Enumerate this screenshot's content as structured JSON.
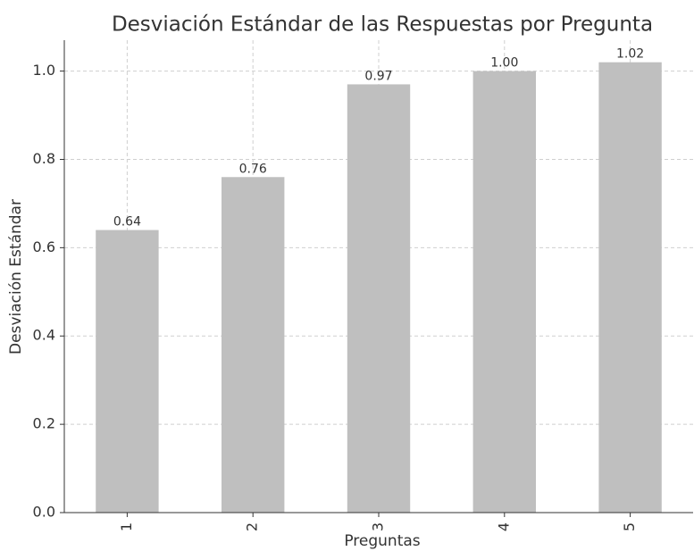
{
  "chart_data": {
    "type": "bar",
    "title": "Desviación Estándar de las Respuestas por Pregunta",
    "x_label": "Preguntas",
    "y_label": "Desviación Estándar",
    "categories": [
      "1",
      "2",
      "3",
      "4",
      "5"
    ],
    "values": [
      0.64,
      0.76,
      0.97,
      1.0,
      1.02
    ],
    "value_labels": [
      "0.64",
      "0.76",
      "0.97",
      "1.00",
      "1.02"
    ],
    "color": "#bfbfbf",
    "ylim": [
      0,
      1.07
    ],
    "yticks": [
      {
        "value": 0,
        "label": "0.0"
      },
      0.2,
      0.4,
      0.6,
      0.8,
      {
        "value": 1,
        "label": "1.0"
      }
    ],
    "grid": true
  }
}
